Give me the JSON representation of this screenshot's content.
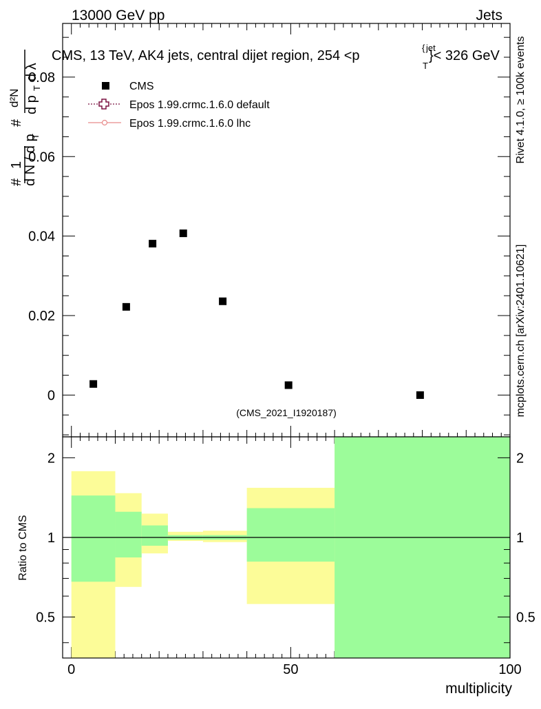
{
  "header": {
    "left": "13000 GeV pp",
    "right": "Jets"
  },
  "side_labels": {
    "rivet": "Rivet 4.1.0, ≥ 100k events",
    "mcplots": "mcplots.cern.ch [arXiv:2401.10621]"
  },
  "chart_data": {
    "type": "scatter",
    "title": "CMS, 13 TeV, AK4 jets, central dijet region, 254 <p",
    "title_sup": "jet",
    "title_sub": "T",
    "title_tail": "}< 326 GeV",
    "title_brace": "{",
    "watermark": "(CMS_2021_I1920187)",
    "xlabel": "multiplicity",
    "ylabel_main": "1/dN/dp_T · d²N/dp_T dλ",
    "ylabel_ratio": "Ratio to CMS",
    "xlim": [
      -2,
      100
    ],
    "ylim": [
      -0.0105,
      0.0935
    ],
    "ratio_ylim": [
      0.35,
      2.4
    ],
    "x_ticks": [
      0,
      50,
      100
    ],
    "x_tick_labels": [
      "0",
      "50",
      "100"
    ],
    "y_ticks": [
      0,
      0.02,
      0.04,
      0.06,
      0.08
    ],
    "y_tick_labels": [
      "0",
      "0.02",
      "0.04",
      "0.06",
      "0.08"
    ],
    "ratio_ticks": [
      0.5,
      1,
      2
    ],
    "ratio_tick_labels": [
      "0.5",
      "1",
      "2"
    ],
    "legend": [
      {
        "label": "CMS",
        "color": "#000000",
        "style": "square"
      },
      {
        "label": "Epos 1.99.crmc.1.6.0 default",
        "color": "#7a1040",
        "style": "dotted-cross"
      },
      {
        "label": "Epos 1.99.crmc.1.6.0 lhc",
        "color": "#e88a8a",
        "style": "solid-circle"
      }
    ],
    "series": [
      {
        "name": "CMS",
        "x": [
          5,
          12.5,
          18.5,
          25.5,
          34.5,
          49.5,
          79.5
        ],
        "y": [
          0.0028,
          0.0222,
          0.0381,
          0.0407,
          0.0236,
          0.0025,
          0.0
        ]
      }
    ],
    "ratio_bands": [
      {
        "x0": 0,
        "x1": 10,
        "y_lo": 0.68,
        "y_hi": 1.44,
        "y2_lo": 0.3,
        "y2_hi": 1.78
      },
      {
        "x0": 10,
        "x1": 16,
        "y_lo": 0.84,
        "y_hi": 1.25,
        "y2_lo": 0.65,
        "y2_hi": 1.47
      },
      {
        "x0": 16,
        "x1": 22,
        "y_lo": 0.93,
        "y_hi": 1.11,
        "y2_lo": 0.87,
        "y2_hi": 1.23
      },
      {
        "x0": 22,
        "x1": 30,
        "y_lo": 0.98,
        "y_hi": 1.02,
        "y2_lo": 0.97,
        "y2_hi": 1.05
      },
      {
        "x0": 30,
        "x1": 40,
        "y_lo": 0.98,
        "y_hi": 1.02,
        "y2_lo": 0.96,
        "y2_hi": 1.06
      },
      {
        "x0": 40,
        "x1": 60,
        "y_lo": 0.81,
        "y_hi": 1.29,
        "y2_lo": 0.56,
        "y2_hi": 1.54
      },
      {
        "x0": 60,
        "x1": 100,
        "y_lo": 0.3,
        "y_hi": 2.6,
        "y2_lo": 0.3,
        "y2_hi": 2.6
      }
    ],
    "colors": {
      "band_inner": "#9cfc9a",
      "band_outer": "#fcfc98",
      "data": "#000000"
    }
  }
}
